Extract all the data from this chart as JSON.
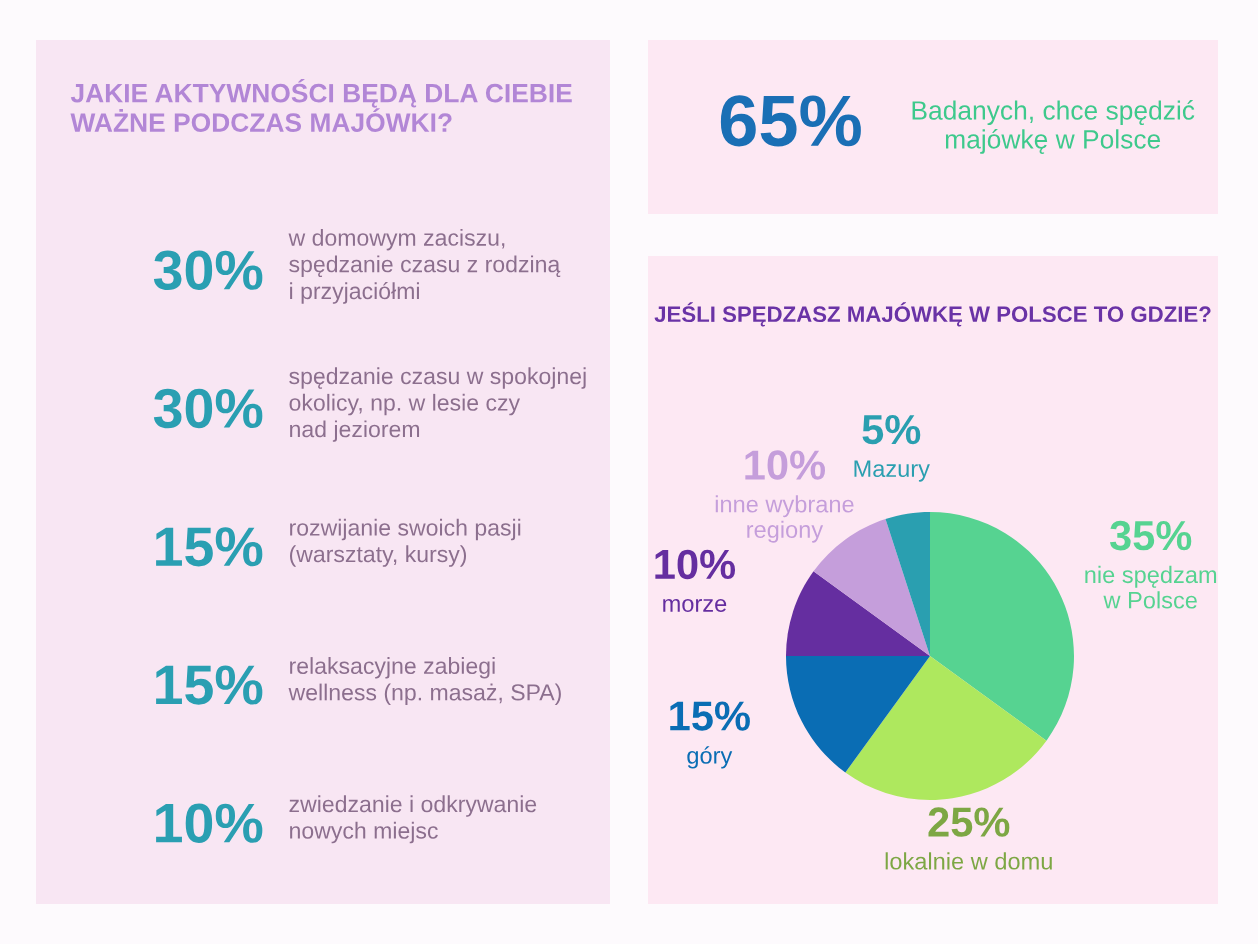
{
  "chart_data": [
    {
      "type": "other",
      "title": "JAKIE AKTYWNOŚCI BĘDĄ DLA CIEBIE\nWAŻNE PODCZAS MAJÓWKI?",
      "colors": [
        "#2a9fb2",
        "#8c6f8e"
      ],
      "annotations": [
        "30%",
        "w domowym zaciszu,\nspędzanie czasu z rodziną\ni przyjaciółmi",
        "30%",
        "spędzanie czasu w spokojnej\nokolicy, np. w lesie czy\nnad jeziorem",
        "15%",
        "rozwijanie swoich pasji\n(warsztaty, kursy)",
        "15%",
        "relaksacyjne zabiegi\nwellness (np. masaż, SPA)",
        "10%",
        "zwiedzanie i odkrywanie\nnowych miejsc"
      ]
    },
    {
      "type": "other",
      "colors": [
        "#1a6fb5",
        "#3ec98c"
      ],
      "annotations": [
        "65%",
        "Badanych, chce spędzić\nmajówkę w Polsce"
      ]
    },
    {
      "type": "pie",
      "title": "JEŚLI SPĘDZASZ MAJÓWKĘ W POLSCE TO GDZIE?",
      "categories": [
        "nie spędzam\nw Polsce",
        "lokalnie w domu",
        "góry",
        "morze",
        "inne wybrane\nregiony",
        "Mazury"
      ],
      "values": [
        35,
        25,
        15,
        10,
        10,
        5
      ],
      "colors": [
        "#56d391",
        "#aee85e",
        "#0a6db4",
        "#652ea0",
        "#c59edb",
        "#2a9fb0"
      ],
      "value_labels": [
        "35%",
        "25%",
        "15%",
        "10%",
        "10%",
        "5%"
      ]
    }
  ]
}
